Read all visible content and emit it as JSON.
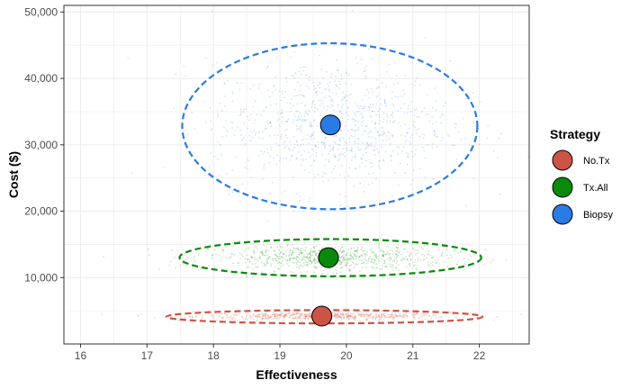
{
  "chart_data": {
    "type": "scatter",
    "title": "",
    "xlabel": "Effectiveness",
    "ylabel": "Cost ($)",
    "xlim": [
      15.75,
      22.75
    ],
    "ylim": [
      0,
      51000
    ],
    "x_ticks": [
      16,
      17,
      18,
      19,
      20,
      21,
      22
    ],
    "y_ticks": [
      10000,
      20000,
      30000,
      40000,
      50000
    ],
    "x_tick_labels": [
      "16",
      "17",
      "18",
      "19",
      "20",
      "21",
      "22"
    ],
    "y_tick_labels": [
      "10,000",
      "20,000",
      "30,000",
      "40,000",
      "50,000"
    ],
    "grid": true,
    "legend": {
      "title": "Strategy",
      "position": "right"
    },
    "series": [
      {
        "name": "No.Tx",
        "color": "#cd5445",
        "mean": [
          19.63,
          4200
        ],
        "ellipse": {
          "cx": 19.67,
          "cy": 4100,
          "rx": 2.38,
          "ry": 1000
        },
        "cloud": {
          "xsd": 0.95,
          "ysd": 300,
          "n": 700
        }
      },
      {
        "name": "Tx.All",
        "color": "#0a8a0a",
        "mean": [
          19.73,
          13000
        ],
        "ellipse": {
          "cx": 19.76,
          "cy": 13000,
          "rx": 2.27,
          "ry": 2800
        },
        "cloud": {
          "xsd": 0.9,
          "ysd": 1000,
          "n": 800
        }
      },
      {
        "name": "Biopsy",
        "color": "#2a7be4",
        "mean": [
          19.76,
          33000
        ],
        "ellipse": {
          "cx": 19.75,
          "cy": 32800,
          "rx": 2.22,
          "ry": 12500
        },
        "cloud": {
          "xsd": 0.9,
          "ysd": 4800,
          "n": 900
        }
      }
    ]
  }
}
